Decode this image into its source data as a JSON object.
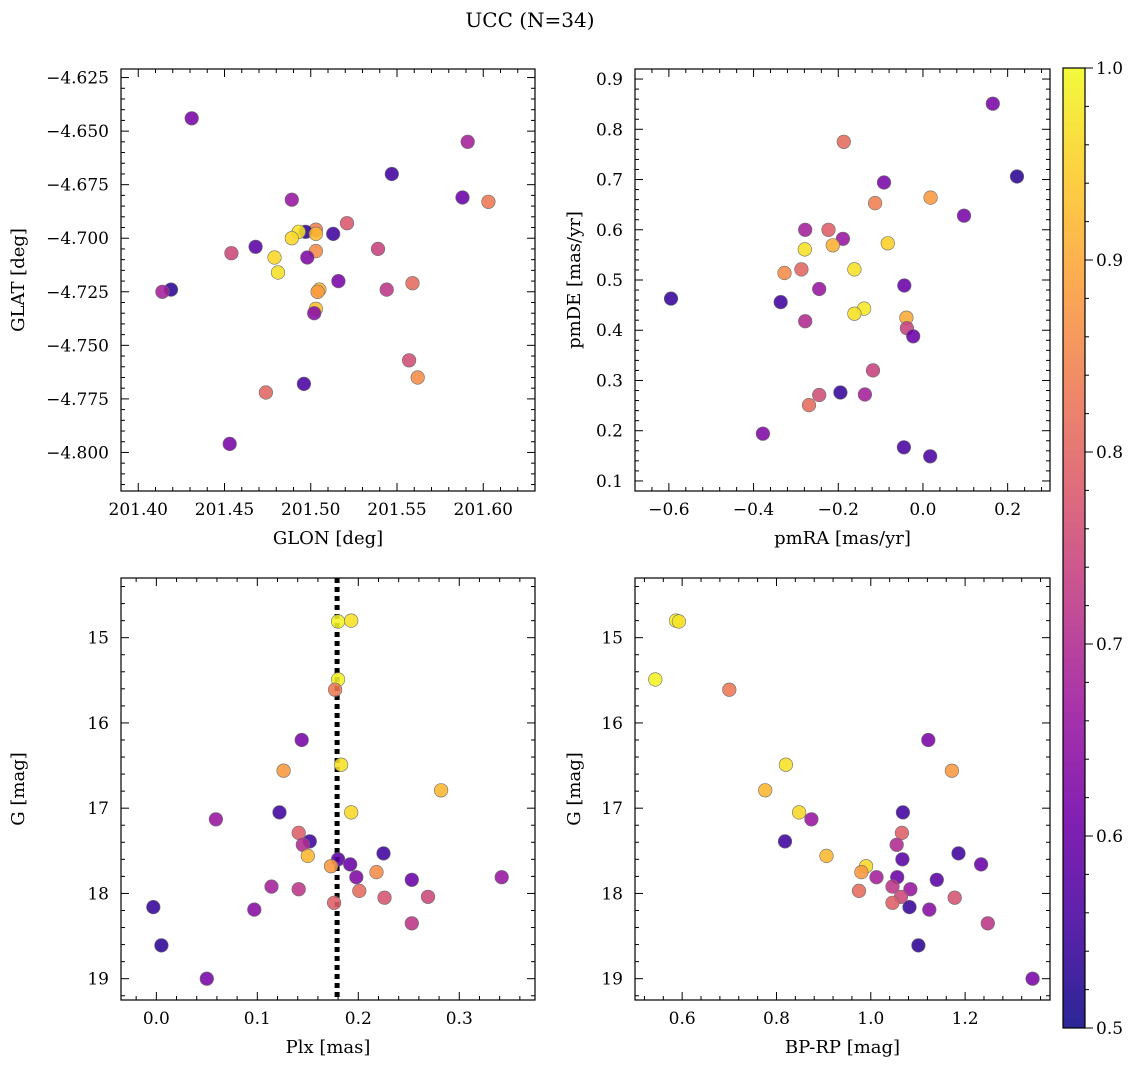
{
  "figure": {
    "title": "UCC (N=34)"
  },
  "colorbar": {
    "min": 0.5,
    "max": 1.0,
    "ticks": [
      0.5,
      0.6,
      0.7,
      0.8,
      0.9,
      1.0
    ],
    "tick_labels": [
      "0.5",
      "0.6",
      "0.7",
      "0.8",
      "0.9",
      "1.0"
    ],
    "colormap": "plasma",
    "colormap_stops": [
      "#0d0887",
      "#46039f",
      "#7201a8",
      "#9c179e",
      "#bd3786",
      "#d8576b",
      "#ed7953",
      "#fb9f3a",
      "#fdca26",
      "#f0f921"
    ]
  },
  "chart_data": [
    {
      "type": "scatter",
      "panel": "GLON-GLAT",
      "xlabel": "GLON [deg]",
      "ylabel": "GLAT [deg]",
      "xlim": [
        201.39,
        201.63
      ],
      "ylim": [
        -4.818,
        -4.621
      ],
      "y_inverted": false,
      "xticks": [
        201.4,
        201.45,
        201.5,
        201.55,
        201.6
      ],
      "xtick_labels": [
        "201.40",
        "201.45",
        "201.50",
        "201.55",
        "201.60"
      ],
      "yticks": [
        -4.625,
        -4.65,
        -4.675,
        -4.7,
        -4.725,
        -4.75,
        -4.775,
        -4.8
      ],
      "ytick_labels": [
        "−4.625",
        "−4.650",
        "−4.675",
        "−4.700",
        "−4.725",
        "−4.750",
        "−4.775",
        "−4.800"
      ],
      "points": [
        {
          "x": 201.431,
          "y": -4.644,
          "c": 0.62
        },
        {
          "x": 201.591,
          "y": -4.655,
          "c": 0.68
        },
        {
          "x": 201.547,
          "y": -4.67,
          "c": 0.55
        },
        {
          "x": 201.588,
          "y": -4.681,
          "c": 0.6
        },
        {
          "x": 201.603,
          "y": -4.683,
          "c": 0.83
        },
        {
          "x": 201.489,
          "y": -4.682,
          "c": 0.66
        },
        {
          "x": 201.521,
          "y": -4.693,
          "c": 0.78
        },
        {
          "x": 201.503,
          "y": -4.696,
          "c": 0.84
        },
        {
          "x": 201.497,
          "y": -4.697,
          "c": 0.53
        },
        {
          "x": 201.493,
          "y": -4.697,
          "c": 0.97
        },
        {
          "x": 201.503,
          "y": -4.698,
          "c": 0.92
        },
        {
          "x": 201.513,
          "y": -4.698,
          "c": 0.55
        },
        {
          "x": 201.489,
          "y": -4.7,
          "c": 0.96
        },
        {
          "x": 201.468,
          "y": -4.704,
          "c": 0.58
        },
        {
          "x": 201.539,
          "y": -4.705,
          "c": 0.74
        },
        {
          "x": 201.503,
          "y": -4.706,
          "c": 0.86
        },
        {
          "x": 201.454,
          "y": -4.707,
          "c": 0.75
        },
        {
          "x": 201.479,
          "y": -4.709,
          "c": 0.96
        },
        {
          "x": 201.498,
          "y": -4.709,
          "c": 0.63
        },
        {
          "x": 201.481,
          "y": -4.716,
          "c": 0.97
        },
        {
          "x": 201.516,
          "y": -4.72,
          "c": 0.62
        },
        {
          "x": 201.559,
          "y": -4.721,
          "c": 0.81
        },
        {
          "x": 201.419,
          "y": -4.724,
          "c": 0.53
        },
        {
          "x": 201.544,
          "y": -4.724,
          "c": 0.72
        },
        {
          "x": 201.505,
          "y": -4.724,
          "c": 0.92
        },
        {
          "x": 201.414,
          "y": -4.725,
          "c": 0.68
        },
        {
          "x": 201.504,
          "y": -4.725,
          "c": 0.88
        },
        {
          "x": 201.503,
          "y": -4.733,
          "c": 0.93
        },
        {
          "x": 201.502,
          "y": -4.735,
          "c": 0.64
        },
        {
          "x": 201.557,
          "y": -4.757,
          "c": 0.76
        },
        {
          "x": 201.562,
          "y": -4.765,
          "c": 0.86
        },
        {
          "x": 201.496,
          "y": -4.768,
          "c": 0.56
        },
        {
          "x": 201.474,
          "y": -4.772,
          "c": 0.8
        },
        {
          "x": 201.453,
          "y": -4.796,
          "c": 0.62
        }
      ]
    },
    {
      "type": "scatter",
      "panel": "pmRA-pmDE",
      "xlabel": "pmRA [mas/yr]",
      "ylabel": "pmDE [mas/yr]",
      "xlim": [
        -0.68,
        0.3
      ],
      "ylim": [
        0.08,
        0.92
      ],
      "y_inverted": false,
      "xticks": [
        -0.6,
        -0.4,
        -0.2,
        0.0,
        0.2
      ],
      "xtick_labels": [
        "−0.6",
        "−0.4",
        "−0.2",
        "0.0",
        "0.2"
      ],
      "yticks": [
        0.1,
        0.2,
        0.3,
        0.4,
        0.5,
        0.6,
        0.7,
        0.8,
        0.9
      ],
      "ytick_labels": [
        "0.1",
        "0.2",
        "0.3",
        "0.4",
        "0.5",
        "0.6",
        "0.7",
        "0.8",
        "0.9"
      ],
      "points": [
        {
          "x": 0.165,
          "y": 0.851,
          "c": 0.62
        },
        {
          "x": -0.187,
          "y": 0.775,
          "c": 0.81
        },
        {
          "x": 0.222,
          "y": 0.706,
          "c": 0.53
        },
        {
          "x": -0.092,
          "y": 0.694,
          "c": 0.62
        },
        {
          "x": 0.018,
          "y": 0.664,
          "c": 0.88
        },
        {
          "x": -0.113,
          "y": 0.653,
          "c": 0.84
        },
        {
          "x": 0.097,
          "y": 0.628,
          "c": 0.62
        },
        {
          "x": -0.278,
          "y": 0.6,
          "c": 0.68
        },
        {
          "x": -0.223,
          "y": 0.6,
          "c": 0.79
        },
        {
          "x": -0.189,
          "y": 0.582,
          "c": 0.66
        },
        {
          "x": -0.083,
          "y": 0.573,
          "c": 0.95
        },
        {
          "x": -0.213,
          "y": 0.569,
          "c": 0.91
        },
        {
          "x": -0.279,
          "y": 0.561,
          "c": 0.97
        },
        {
          "x": -0.162,
          "y": 0.521,
          "c": 0.97
        },
        {
          "x": -0.287,
          "y": 0.521,
          "c": 0.8
        },
        {
          "x": -0.327,
          "y": 0.514,
          "c": 0.86
        },
        {
          "x": -0.044,
          "y": 0.489,
          "c": 0.6
        },
        {
          "x": -0.245,
          "y": 0.482,
          "c": 0.66
        },
        {
          "x": -0.595,
          "y": 0.463,
          "c": 0.54
        },
        {
          "x": -0.336,
          "y": 0.456,
          "c": 0.55
        },
        {
          "x": -0.139,
          "y": 0.443,
          "c": 0.98
        },
        {
          "x": -0.162,
          "y": 0.433,
          "c": 0.97
        },
        {
          "x": -0.039,
          "y": 0.425,
          "c": 0.9
        },
        {
          "x": -0.278,
          "y": 0.418,
          "c": 0.7
        },
        {
          "x": -0.038,
          "y": 0.404,
          "c": 0.74
        },
        {
          "x": -0.023,
          "y": 0.388,
          "c": 0.6
        },
        {
          "x": -0.118,
          "y": 0.32,
          "c": 0.74
        },
        {
          "x": -0.195,
          "y": 0.276,
          "c": 0.54
        },
        {
          "x": -0.137,
          "y": 0.272,
          "c": 0.68
        },
        {
          "x": -0.245,
          "y": 0.271,
          "c": 0.76
        },
        {
          "x": -0.269,
          "y": 0.251,
          "c": 0.81
        },
        {
          "x": -0.378,
          "y": 0.194,
          "c": 0.63
        },
        {
          "x": -0.045,
          "y": 0.167,
          "c": 0.56
        },
        {
          "x": 0.017,
          "y": 0.149,
          "c": 0.56
        }
      ]
    },
    {
      "type": "scatter",
      "panel": "Plx-G",
      "xlabel": "Plx [mas]",
      "ylabel": "G [mag]",
      "xlim": [
        -0.035,
        0.375
      ],
      "ylim": [
        14.3,
        19.25
      ],
      "y_inverted": true,
      "xticks": [
        0.0,
        0.1,
        0.2,
        0.3
      ],
      "xtick_labels": [
        "0.0",
        "0.1",
        "0.2",
        "0.3"
      ],
      "yticks": [
        15,
        16,
        17,
        18,
        19
      ],
      "ytick_labels": [
        "15",
        "16",
        "17",
        "18",
        "19"
      ],
      "reference_line": {
        "axis": "x",
        "value": 0.179,
        "style": "dotted",
        "color": "#000000"
      },
      "points": [
        {
          "x": 0.18,
          "y": 14.81,
          "c": 0.99
        },
        {
          "x": 0.193,
          "y": 14.8,
          "c": 0.97
        },
        {
          "x": 0.18,
          "y": 15.49,
          "c": 0.99
        },
        {
          "x": 0.177,
          "y": 15.61,
          "c": 0.83
        },
        {
          "x": 0.144,
          "y": 16.2,
          "c": 0.62
        },
        {
          "x": 0.183,
          "y": 16.49,
          "c": 0.97
        },
        {
          "x": 0.126,
          "y": 16.56,
          "c": 0.88
        },
        {
          "x": 0.282,
          "y": 16.79,
          "c": 0.92
        },
        {
          "x": 0.122,
          "y": 17.05,
          "c": 0.55
        },
        {
          "x": 0.193,
          "y": 17.05,
          "c": 0.96
        },
        {
          "x": 0.059,
          "y": 17.13,
          "c": 0.66
        },
        {
          "x": 0.141,
          "y": 17.29,
          "c": 0.79
        },
        {
          "x": 0.152,
          "y": 17.39,
          "c": 0.55
        },
        {
          "x": 0.145,
          "y": 17.43,
          "c": 0.7
        },
        {
          "x": 0.15,
          "y": 17.56,
          "c": 0.92
        },
        {
          "x": 0.225,
          "y": 17.53,
          "c": 0.55
        },
        {
          "x": 0.18,
          "y": 17.6,
          "c": 0.58
        },
        {
          "x": 0.192,
          "y": 17.66,
          "c": 0.6
        },
        {
          "x": 0.173,
          "y": 17.68,
          "c": 0.88
        },
        {
          "x": 0.218,
          "y": 17.75,
          "c": 0.86
        },
        {
          "x": 0.198,
          "y": 17.81,
          "c": 0.63
        },
        {
          "x": 0.342,
          "y": 17.81,
          "c": 0.66
        },
        {
          "x": 0.253,
          "y": 17.84,
          "c": 0.6
        },
        {
          "x": 0.114,
          "y": 17.92,
          "c": 0.68
        },
        {
          "x": 0.141,
          "y": 17.95,
          "c": 0.72
        },
        {
          "x": 0.201,
          "y": 17.97,
          "c": 0.81
        },
        {
          "x": 0.269,
          "y": 18.04,
          "c": 0.75
        },
        {
          "x": 0.226,
          "y": 18.05,
          "c": 0.77
        },
        {
          "x": 0.176,
          "y": 18.11,
          "c": 0.79
        },
        {
          "x": -0.003,
          "y": 18.16,
          "c": 0.54
        },
        {
          "x": 0.097,
          "y": 18.19,
          "c": 0.64
        },
        {
          "x": 0.253,
          "y": 18.35,
          "c": 0.72
        },
        {
          "x": 0.005,
          "y": 18.61,
          "c": 0.53
        },
        {
          "x": 0.05,
          "y": 19.0,
          "c": 0.62
        }
      ]
    },
    {
      "type": "scatter",
      "panel": "BP-RP-G",
      "xlabel": "BP-RP [mag]",
      "ylabel": "G [mag]",
      "xlim": [
        0.5,
        1.38
      ],
      "ylim": [
        14.3,
        19.25
      ],
      "y_inverted": true,
      "xticks": [
        0.6,
        0.8,
        1.0,
        1.2
      ],
      "xtick_labels": [
        "0.6",
        "0.8",
        "1.0",
        "1.2"
      ],
      "yticks": [
        15,
        16,
        17,
        18,
        19
      ],
      "ytick_labels": [
        "15",
        "16",
        "17",
        "18",
        "19"
      ],
      "points": [
        {
          "x": 0.587,
          "y": 14.8,
          "c": 0.99
        },
        {
          "x": 0.593,
          "y": 14.81,
          "c": 0.97
        },
        {
          "x": 0.543,
          "y": 15.49,
          "c": 0.99
        },
        {
          "x": 0.7,
          "y": 15.61,
          "c": 0.83
        },
        {
          "x": 1.122,
          "y": 16.2,
          "c": 0.62
        },
        {
          "x": 0.82,
          "y": 16.49,
          "c": 0.97
        },
        {
          "x": 1.172,
          "y": 16.56,
          "c": 0.88
        },
        {
          "x": 0.776,
          "y": 16.79,
          "c": 0.92
        },
        {
          "x": 1.068,
          "y": 17.05,
          "c": 0.55
        },
        {
          "x": 0.848,
          "y": 17.05,
          "c": 0.96
        },
        {
          "x": 0.874,
          "y": 17.13,
          "c": 0.66
        },
        {
          "x": 1.066,
          "y": 17.29,
          "c": 0.79
        },
        {
          "x": 0.818,
          "y": 17.39,
          "c": 0.55
        },
        {
          "x": 1.055,
          "y": 17.43,
          "c": 0.7
        },
        {
          "x": 0.906,
          "y": 17.56,
          "c": 0.92
        },
        {
          "x": 1.186,
          "y": 17.53,
          "c": 0.55
        },
        {
          "x": 1.067,
          "y": 17.6,
          "c": 0.58
        },
        {
          "x": 1.234,
          "y": 17.66,
          "c": 0.6
        },
        {
          "x": 0.99,
          "y": 17.68,
          "c": 0.96
        },
        {
          "x": 0.98,
          "y": 17.75,
          "c": 0.88
        },
        {
          "x": 1.012,
          "y": 17.81,
          "c": 0.68
        },
        {
          "x": 1.056,
          "y": 17.81,
          "c": 0.6
        },
        {
          "x": 1.14,
          "y": 17.84,
          "c": 0.58
        },
        {
          "x": 1.046,
          "y": 17.92,
          "c": 0.72
        },
        {
          "x": 1.084,
          "y": 17.95,
          "c": 0.66
        },
        {
          "x": 0.975,
          "y": 17.97,
          "c": 0.81
        },
        {
          "x": 1.064,
          "y": 18.04,
          "c": 0.75
        },
        {
          "x": 1.178,
          "y": 18.05,
          "c": 0.77
        },
        {
          "x": 1.046,
          "y": 18.11,
          "c": 0.79
        },
        {
          "x": 1.082,
          "y": 18.16,
          "c": 0.54
        },
        {
          "x": 1.124,
          "y": 18.19,
          "c": 0.64
        },
        {
          "x": 1.248,
          "y": 18.35,
          "c": 0.72
        },
        {
          "x": 1.101,
          "y": 18.61,
          "c": 0.53
        },
        {
          "x": 1.343,
          "y": 19.0,
          "c": 0.62
        }
      ]
    }
  ]
}
